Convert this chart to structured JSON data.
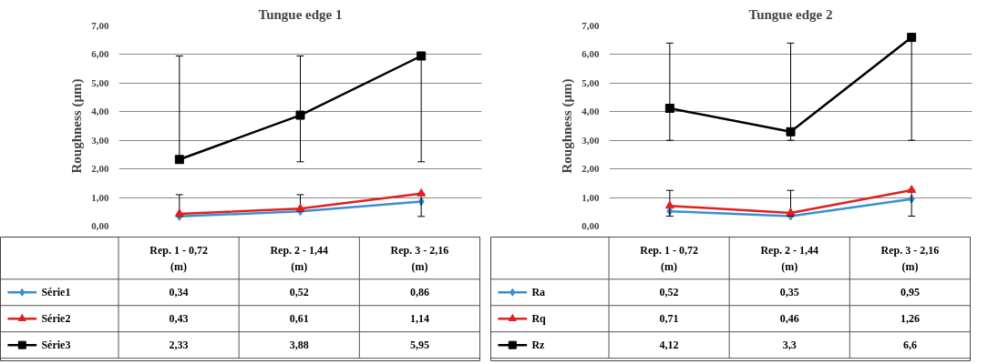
{
  "chart_data": [
    {
      "type": "line",
      "title": "Tungue edge 1",
      "ylabel": "Roughness (µm)",
      "categories": [
        "Rep. 1 - 0,72\n(m)",
        "Rep. 2 - 1,44\n(m)",
        "Rep. 3 - 2,16\n(m)"
      ],
      "ylim": [
        0,
        7
      ],
      "yticks": [
        {
          "value": 0,
          "label": "0,00"
        },
        {
          "value": 1,
          "label": "1,00"
        },
        {
          "value": 2,
          "label": "2,00"
        },
        {
          "value": 3,
          "label": "3,00"
        },
        {
          "value": 4,
          "label": "4,00"
        },
        {
          "value": 5,
          "label": "5,00"
        },
        {
          "value": 6,
          "label": "6,00"
        },
        {
          "value": 7,
          "label": "7,00"
        }
      ],
      "grid": "y",
      "legend": "bottom",
      "tick_labels": "y",
      "series": [
        {
          "name": "Série1",
          "color": "#3a8fd0",
          "marker": "diamond",
          "values": [
            0.34,
            0.52,
            0.86
          ],
          "value_labels": [
            "0,34",
            "0,52",
            "0,86"
          ]
        },
        {
          "name": "Série2",
          "color": "#e02020",
          "marker": "triangle",
          "values": [
            0.43,
            0.61,
            1.14
          ],
          "value_labels": [
            "0,43",
            "0,61",
            "1,14"
          ],
          "errors": [
            [
              0.34,
              1.1
            ],
            [
              0.52,
              1.1
            ],
            [
              0.34,
              1.14
            ]
          ]
        },
        {
          "name": "Série3",
          "color": "#000000",
          "marker": "square",
          "values": [
            2.33,
            3.88,
            5.95
          ],
          "value_labels": [
            "2,33",
            "3,88",
            "5,95"
          ],
          "errors": [
            [
              2.33,
              5.95
            ],
            [
              2.25,
              5.95
            ],
            [
              2.25,
              5.95
            ]
          ]
        }
      ]
    },
    {
      "type": "line",
      "title": "Tungue edge 2",
      "ylabel": "Roughness (µm)",
      "categories": [
        "Rep. 1 - 0,72\n(m)",
        "Rep. 2 - 1,44\n(m)",
        "Rep. 3 - 2,16\n(m)"
      ],
      "ylim": [
        0,
        7
      ],
      "yticks": [
        {
          "value": 0,
          "label": "0,00"
        },
        {
          "value": 1,
          "label": "1,00"
        },
        {
          "value": 2,
          "label": "2,00"
        },
        {
          "value": 3,
          "label": "3,00"
        },
        {
          "value": 4,
          "label": "4,00"
        },
        {
          "value": 5,
          "label": "5,00"
        },
        {
          "value": 6,
          "label": "6,00"
        },
        {
          "value": 7,
          "label": "7,00"
        }
      ],
      "grid": "y",
      "legend": "bottom",
      "tick_labels": "y",
      "series": [
        {
          "name": "Ra",
          "color": "#3a8fd0",
          "marker": "diamond",
          "values": [
            0.52,
            0.35,
            0.95
          ],
          "value_labels": [
            "0,52",
            "0,35",
            "0,95"
          ]
        },
        {
          "name": "Rq",
          "color": "#e02020",
          "marker": "triangle",
          "values": [
            0.71,
            0.46,
            1.26
          ],
          "value_labels": [
            "0,71",
            "0,46",
            "1,26"
          ],
          "errors": [
            [
              0.35,
              1.25
            ],
            [
              0.35,
              1.25
            ],
            [
              0.35,
              1.26
            ]
          ]
        },
        {
          "name": "Rz",
          "color": "#000000",
          "marker": "square",
          "values": [
            4.12,
            3.3,
            6.6
          ],
          "value_labels": [
            "4,12",
            "3,3",
            "6,6"
          ],
          "errors": [
            [
              3.0,
              6.4
            ],
            [
              3.0,
              6.4
            ],
            [
              3.0,
              6.6
            ]
          ]
        }
      ]
    }
  ]
}
